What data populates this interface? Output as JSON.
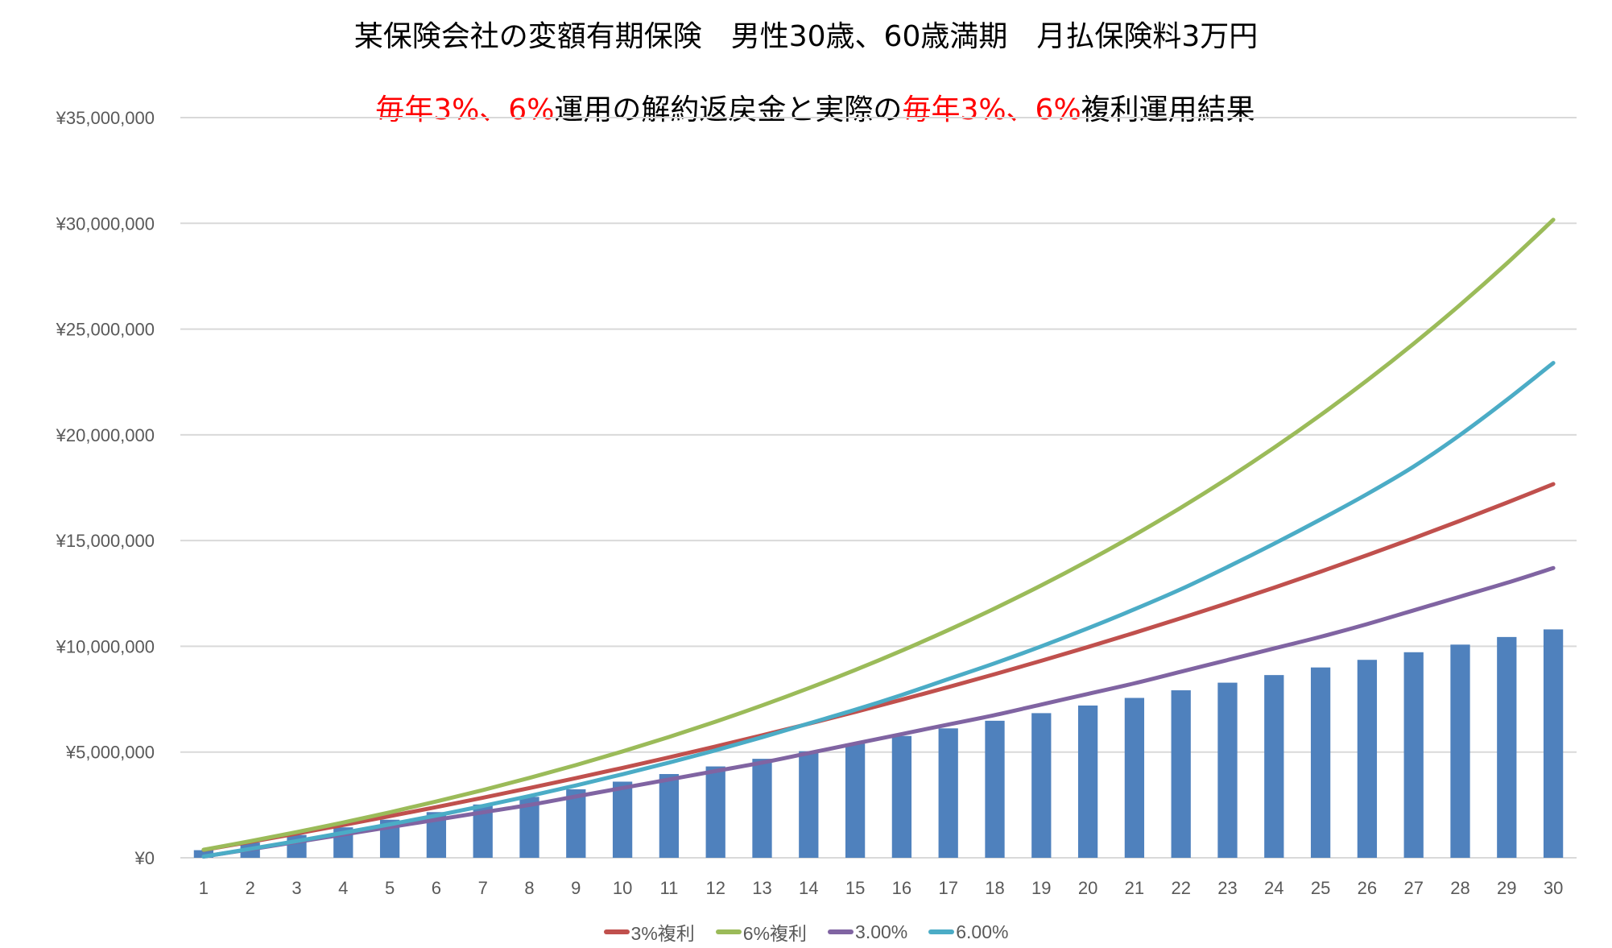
{
  "title": {
    "line1": "某保険会社の変額有期保険　男性30歳、60歳満期　月払保険料3万円",
    "line2_parts": [
      {
        "text": "毎年3%、6%",
        "red": true
      },
      {
        "text": "運用の解約返戻金と実際の",
        "red": false
      },
      {
        "text": "毎年3%、6%",
        "red": true
      },
      {
        "text": "複利運用結果",
        "red": false
      }
    ]
  },
  "chart_data": {
    "type": "bar+line",
    "categories": [
      1,
      2,
      3,
      4,
      5,
      6,
      7,
      8,
      9,
      10,
      11,
      12,
      13,
      14,
      15,
      16,
      17,
      18,
      19,
      20,
      21,
      22,
      23,
      24,
      25,
      26,
      27,
      28,
      29,
      30
    ],
    "y_ticks": [
      "¥0",
      "¥5,000,000",
      "¥10,000,000",
      "¥15,000,000",
      "¥20,000,000",
      "¥25,000,000",
      "¥30,000,000",
      "¥35,000,000"
    ],
    "ylim": [
      0,
      35000000
    ],
    "grid": true,
    "legend_position": "bottom",
    "bars": {
      "color": "#4F81BD",
      "values": [
        360000,
        720000,
        1080000,
        1440000,
        1800000,
        2160000,
        2520000,
        2880000,
        3240000,
        3600000,
        3960000,
        4320000,
        4680000,
        5040000,
        5400000,
        5760000,
        6120000,
        6480000,
        6840000,
        7200000,
        7560000,
        7920000,
        8280000,
        8640000,
        9000000,
        9360000,
        9720000,
        10080000,
        10440000,
        10800000
      ]
    },
    "series": [
      {
        "name": "3%複利",
        "color": "#C0504D",
        "values": [
          370800,
          752724,
          1146106,
          1551289,
          1968627,
          2398486,
          2841241,
          3297279,
          3767007,
          4250838,
          4749203,
          5262549,
          5791335,
          6336035,
          6897136,
          7475144,
          8070579,
          8683979,
          9315899,
          9966916,
          10637625,
          11328643,
          12040608,
          12774182,
          13530050,
          14308923,
          15111539,
          15938661,
          16791083,
          17669629
        ]
      },
      {
        "name": "6%複利",
        "color": "#9BBB59",
        "values": [
          381600,
          786096,
          1214862,
          1669354,
          2151115,
          2661782,
          3203089,
          3776874,
          4385087,
          5029792,
          5713180,
          6437571,
          7205425,
          8019351,
          8882112,
          9796639,
          10766037,
          11793599,
          12882815,
          14037384,
          15261227,
          16558500,
          17933609,
          19391226,
          20936300,
          22574078,
          24310123,
          26150330,
          28100950,
          30168608
        ]
      },
      {
        "name": "3.00%",
        "color": "#8064A2",
        "values": [
          60000,
          400000,
          750000,
          1100000,
          1450000,
          1800000,
          2150000,
          2500000,
          2900000,
          3300000,
          3700000,
          4100000,
          4500000,
          4950000,
          5400000,
          5850000,
          6300000,
          6750000,
          7250000,
          7750000,
          8250000,
          8800000,
          9350000,
          9900000,
          10450000,
          11050000,
          11700000,
          12350000,
          13000000,
          13700000
        ]
      },
      {
        "name": "6.00%",
        "color": "#4BACC6",
        "values": [
          60000,
          420000,
          790000,
          1180000,
          1580000,
          2000000,
          2450000,
          2920000,
          3420000,
          3950000,
          4500000,
          5080000,
          5700000,
          6350000,
          7000000,
          7700000,
          8450000,
          9200000,
          10000000,
          10850000,
          11750000,
          12700000,
          13750000,
          14850000,
          16000000,
          17200000,
          18500000,
          20000000,
          21650000,
          23400000
        ]
      }
    ]
  }
}
